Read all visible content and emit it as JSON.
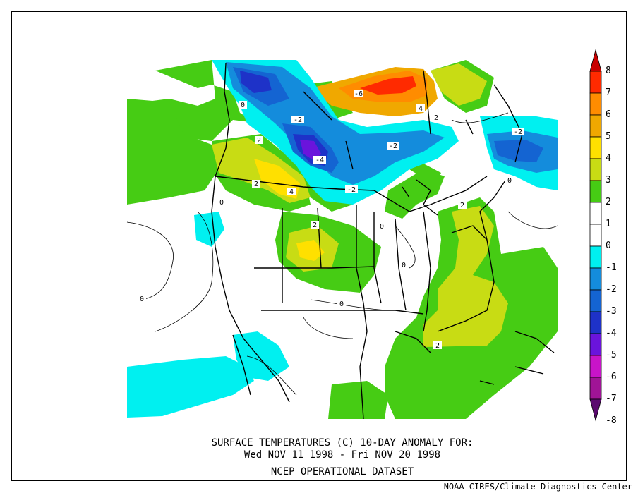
{
  "title": {
    "line1": "SURFACE TEMPERATURES (C)   10-DAY ANOMALY FOR:",
    "line2": "Wed NOV 11 1998 - Fri NOV 20 1998",
    "line3": "NCEP OPERATIONAL DATASET"
  },
  "credit": "NOAA-CIRES/Climate Diagnostics Center",
  "colorbar": {
    "levels": [
      {
        "label": "8",
        "color": "#c80000"
      },
      {
        "label": "7",
        "color": "#ff2a00"
      },
      {
        "label": "6",
        "color": "#ff8c00"
      },
      {
        "label": "5",
        "color": "#f0a800"
      },
      {
        "label": "4",
        "color": "#ffe000"
      },
      {
        "label": "3",
        "color": "#c8dc14"
      },
      {
        "label": "2",
        "color": "#46cc14"
      },
      {
        "label": "1",
        "color": "#ffffff"
      },
      {
        "label": "0",
        "color": "#ffffff"
      },
      {
        "label": "-1",
        "color": "#00f0f0"
      },
      {
        "label": "-2",
        "color": "#148cdc"
      },
      {
        "label": "-3",
        "color": "#1464d2"
      },
      {
        "label": "-4",
        "color": "#1e32c8"
      },
      {
        "label": "-5",
        "color": "#6a14dc"
      },
      {
        "label": "-6",
        "color": "#c814c8"
      },
      {
        "label": "-7",
        "color": "#a01496"
      },
      {
        "label": "-8",
        "color": "#5a0a6e"
      }
    ]
  },
  "contour_labels": [
    "-6",
    "-4",
    "-2",
    "-2",
    "-4",
    "-2",
    "-2",
    "-2",
    "2",
    "4",
    "2",
    "4",
    "2",
    "2",
    "0",
    "0",
    "0",
    "0",
    "0",
    "0",
    "2",
    "2",
    "2",
    "0"
  ],
  "colors": {
    "warm2": "#46cc14",
    "warm3": "#c8dc14",
    "warm4": "#ffe000",
    "warm5": "#f0a800",
    "warm6": "#ff8c00",
    "warm7": "#ff2a00",
    "cool1": "#00f0f0",
    "cool2": "#148cdc",
    "cool3": "#1464d2",
    "cool4": "#1e32c8",
    "cool5": "#6a14dc"
  }
}
